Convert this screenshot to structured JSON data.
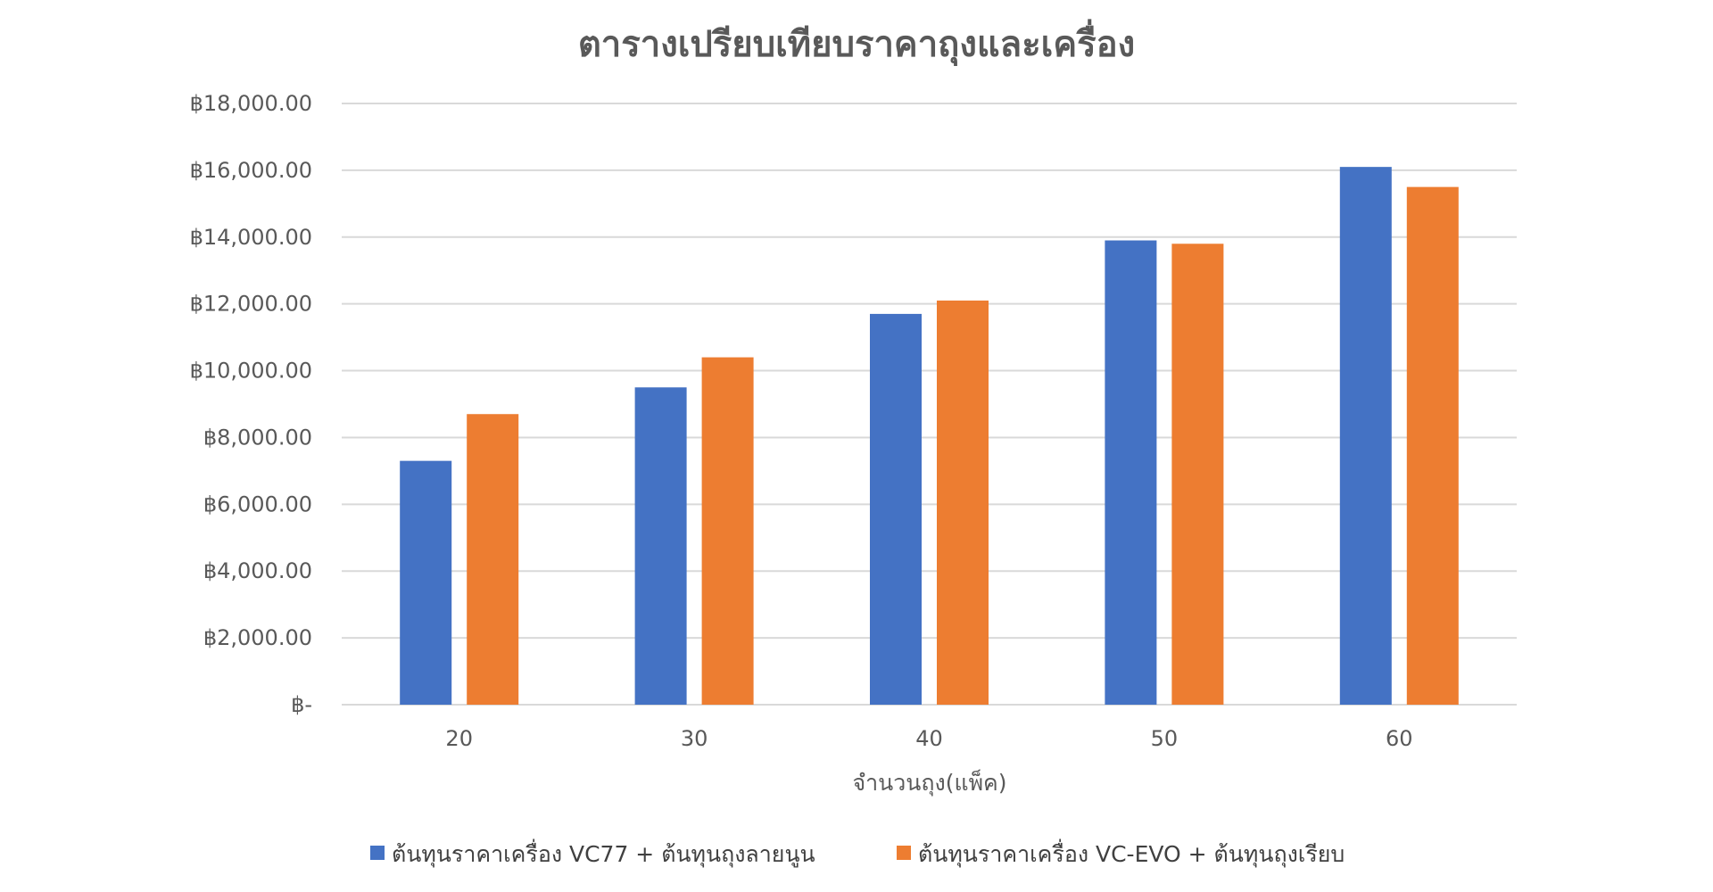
{
  "chart_data": {
    "type": "bar",
    "title": "ตารางเปรียบเทียบราคาถุงและเครื่อง",
    "xlabel": "จำนวนถุง(แพ็ค)",
    "ylabel": "",
    "categories": [
      "20",
      "30",
      "40",
      "50",
      "60"
    ],
    "series": [
      {
        "name": "ต้นทุนราคาเครื่อง VC77 + ต้นทุนถุงลายนูน",
        "color": "#4472C4",
        "values": [
          7300,
          9500,
          11700,
          13900,
          16100
        ]
      },
      {
        "name": "ต้นทุนราคาเครื่อง VC-EVO + ต้นทุนถุงเรียบ",
        "color": "#ED7D31",
        "values": [
          8700,
          10400,
          12100,
          13800,
          15500
        ]
      }
    ],
    "ylim": [
      0,
      18000
    ],
    "yticks": [
      0,
      2000,
      4000,
      6000,
      8000,
      10000,
      12000,
      14000,
      16000,
      18000
    ],
    "ytick_labels": [
      "฿-",
      "฿2,000.00",
      "฿4,000.00",
      "฿6,000.00",
      "฿8,000.00",
      "฿10,000.00",
      "฿12,000.00",
      "฿14,000.00",
      "฿16,000.00",
      "฿18,000.00"
    ],
    "grid": true,
    "legend_position": "bottom",
    "colors": {
      "gridline": "#D9D9D9",
      "text": "#595959"
    }
  }
}
